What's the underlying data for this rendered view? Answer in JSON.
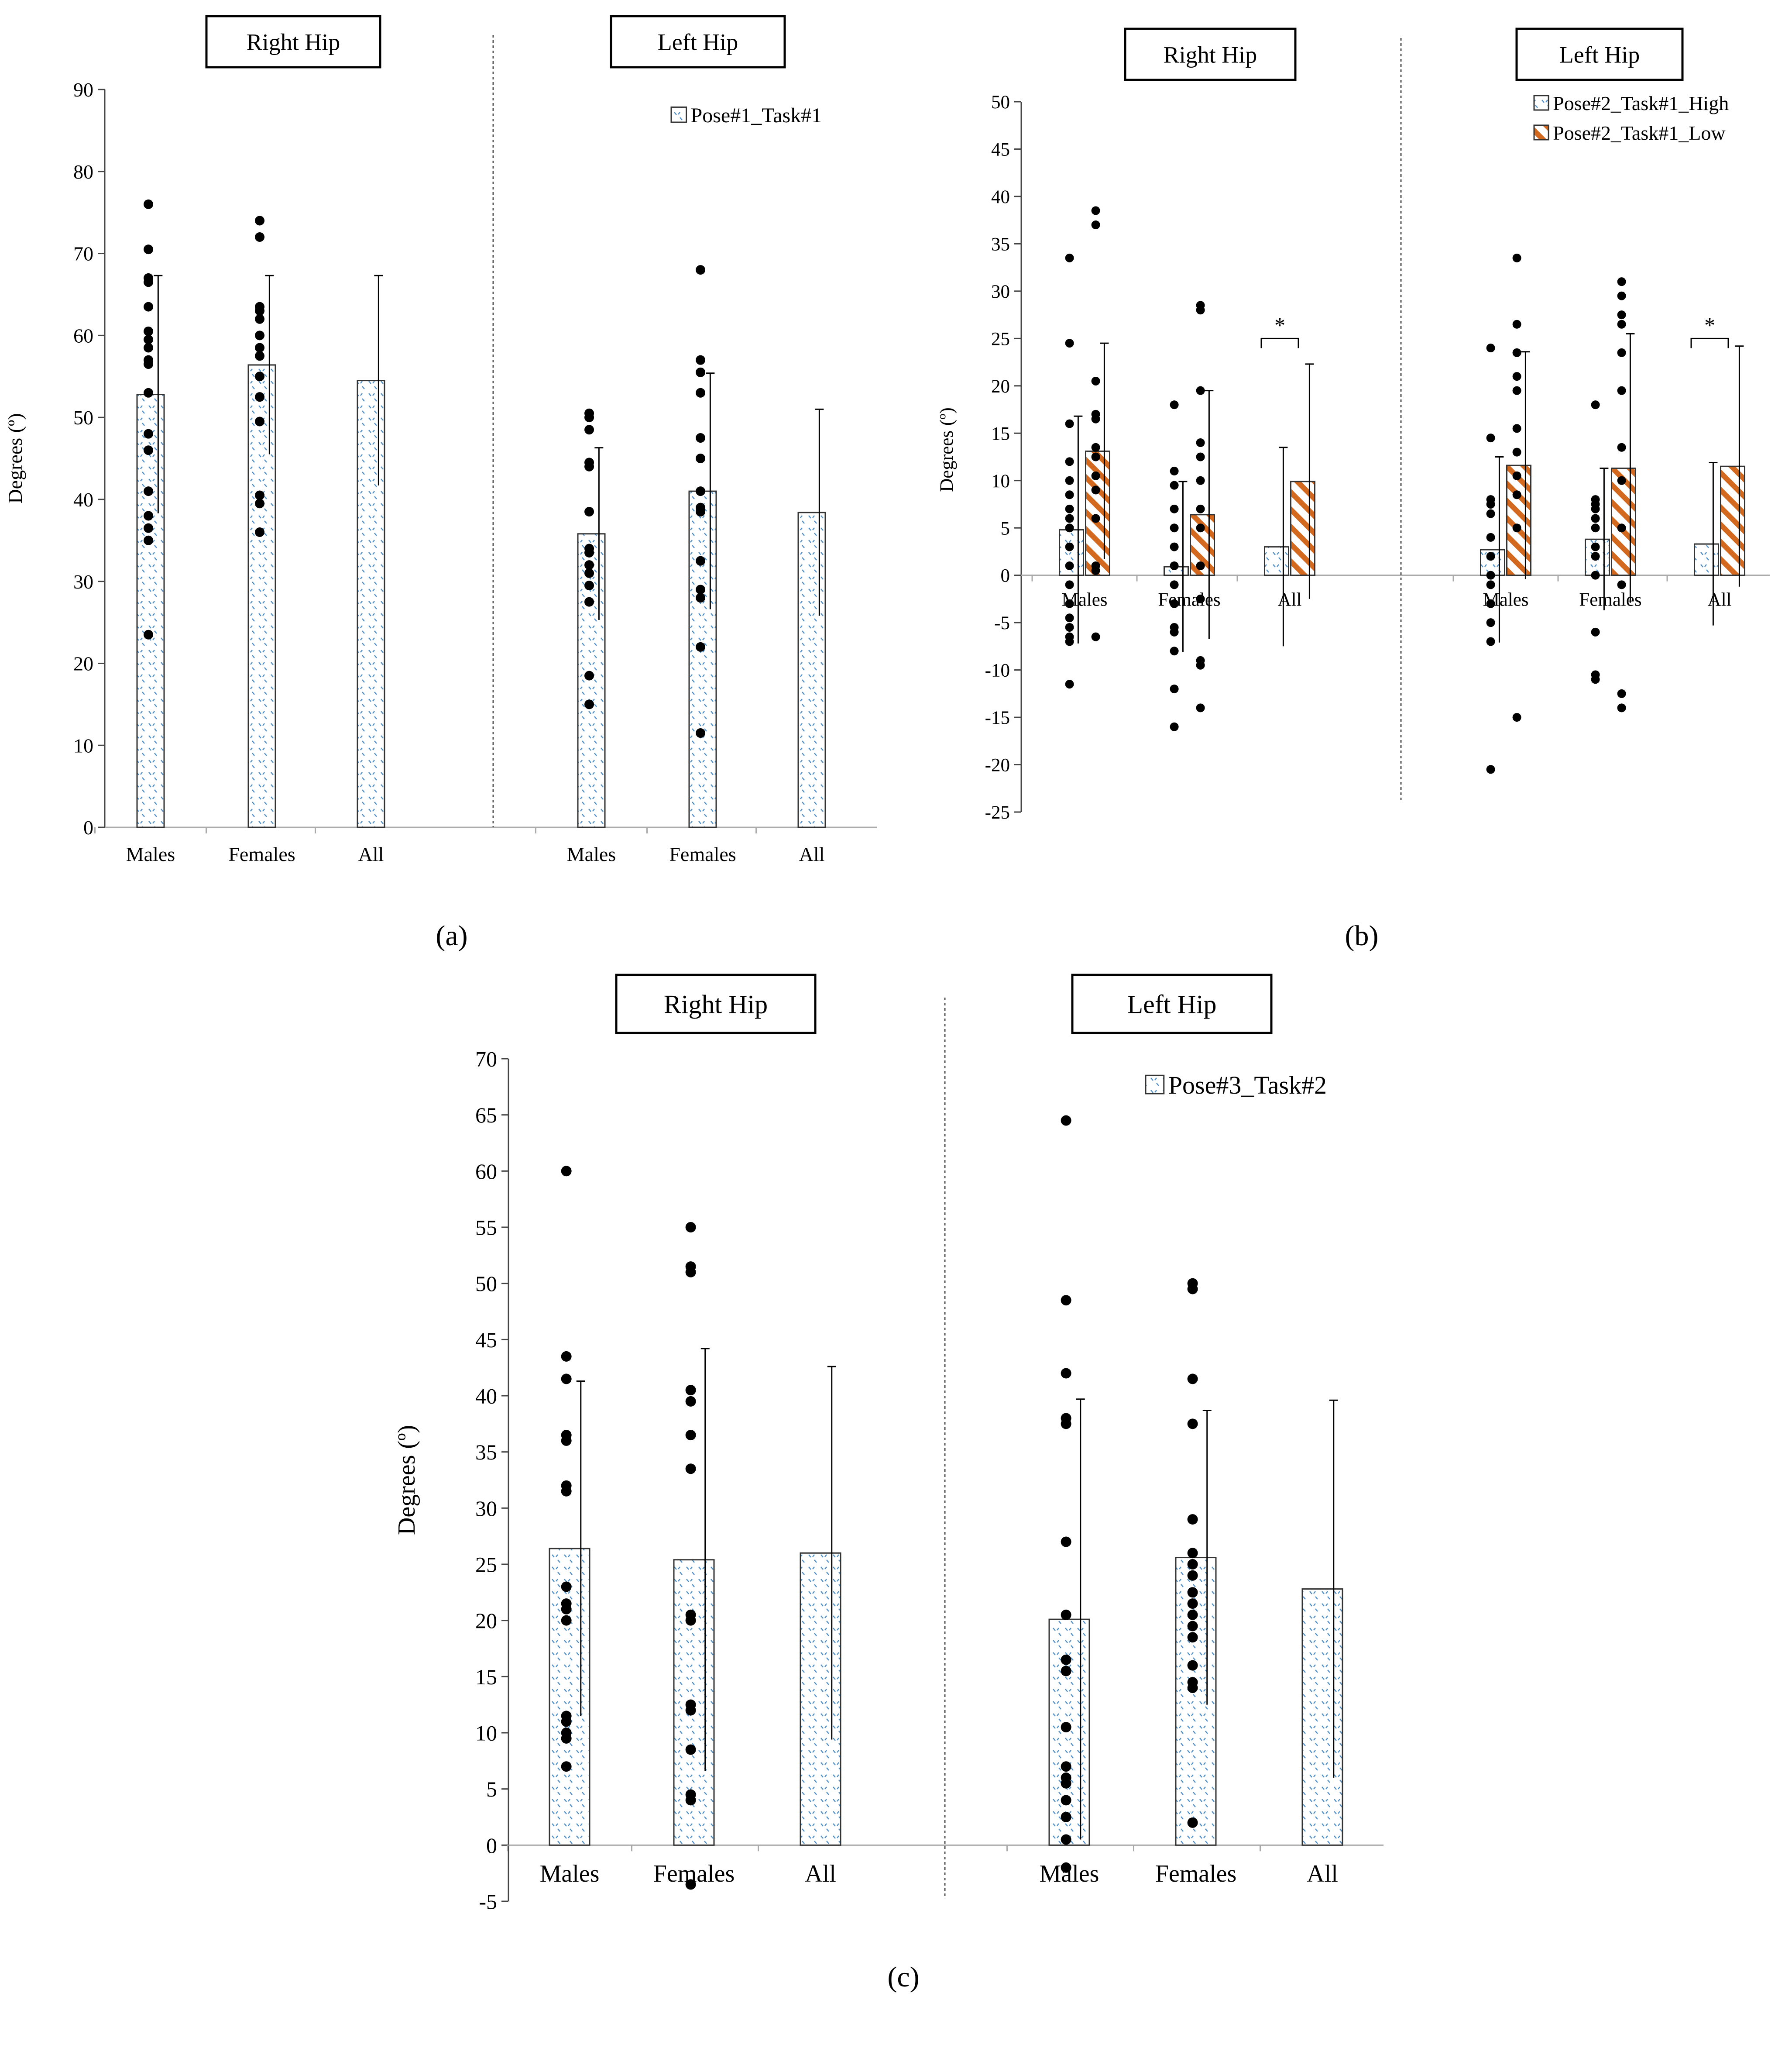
{
  "figure": {
    "panel_labels": [
      "(a)",
      "(b)",
      "(c)"
    ]
  },
  "chart_data": [
    {
      "type": "bar",
      "panel": "(a)",
      "ylabel": "Degrees (º)",
      "ylim": [
        0,
        90
      ],
      "yticks": [
        0,
        10,
        20,
        30,
        40,
        50,
        60,
        70,
        80,
        90
      ],
      "groups": [
        "Right Hip",
        "Left Hip"
      ],
      "categories": [
        "Males",
        "Females",
        "All"
      ],
      "legend_position": "top-right",
      "series": [
        {
          "name": "Pose#1_Task#1",
          "color": "#4f8fc7",
          "pattern": "dots",
          "values": [
            [
              52.8,
              56.4,
              54.5
            ],
            [
              35.8,
              41.0,
              38.4
            ]
          ],
          "errors": [
            [
              14.5,
              10.9,
              12.8
            ],
            [
              10.5,
              14.4,
              12.6
            ]
          ],
          "points": [
            [
              [
                76.0,
                70.5,
                67.0,
                66.5,
                63.5,
                60.5,
                59.5,
                58.5,
                57.0,
                56.5,
                53.0,
                48.0,
                46.0,
                41.0,
                38.0,
                36.5,
                35.0,
                23.5
              ],
              [
                74.0,
                72.0,
                63.5,
                63.0,
                62.0,
                60.0,
                58.5,
                57.5,
                55.0,
                52.5,
                49.5,
                40.5,
                39.5,
                36.0
              ]
            ],
            [
              [
                50.5,
                50.0,
                48.5,
                44.5,
                44.0,
                38.5,
                34.0,
                33.5,
                32.0,
                31.0,
                29.5,
                27.5,
                18.5,
                15.0
              ],
              [
                68.0,
                57.0,
                55.5,
                53.0,
                47.5,
                45.0,
                41.0,
                39.0,
                38.5,
                32.5,
                29.0,
                28.0,
                22.0,
                11.5
              ]
            ]
          ]
        }
      ]
    },
    {
      "type": "bar",
      "panel": "(b)",
      "ylabel": "Degrees (º)",
      "ylim": [
        -25,
        50
      ],
      "yticks": [
        -25,
        -20,
        -15,
        -10,
        -5,
        0,
        5,
        10,
        15,
        20,
        25,
        30,
        35,
        40,
        45,
        50
      ],
      "groups": [
        "Right Hip",
        "Left Hip"
      ],
      "categories": [
        "Males",
        "Females",
        "All"
      ],
      "legend_position": "top-right",
      "significance_marker": "*",
      "significance_on": [
        "Right Hip/All",
        "Left Hip/All"
      ],
      "series": [
        {
          "name": "Pose#2_Task#1_High",
          "color": "#4f8fc7",
          "pattern": "dots",
          "values": [
            [
              4.8,
              0.9,
              3.0
            ],
            [
              2.7,
              3.8,
              3.3
            ]
          ],
          "errors": [
            [
              12.0,
              9.0,
              10.5
            ],
            [
              9.8,
              7.5,
              8.6
            ]
          ],
          "points": [
            [
              [
                33.5,
                24.5,
                16.0,
                12.0,
                10.0,
                8.5,
                7.0,
                6.0,
                5.0,
                3.0,
                1.0,
                -1.0,
                -3.0,
                -4.5,
                -5.5,
                -6.5,
                -7.0,
                -11.5
              ],
              [
                18.0,
                11.0,
                9.5,
                7.0,
                5.0,
                3.0,
                1.0,
                -1.0,
                -3.0,
                -5.5,
                -6.0,
                -8.0,
                -12.0,
                -16.0
              ]
            ],
            [
              [
                24.0,
                14.5,
                8.0,
                7.5,
                6.5,
                4.0,
                2.0,
                0.0,
                -1.0,
                -3.0,
                -5.0,
                -7.0,
                -20.5
              ],
              [
                18.0,
                8.0,
                7.5,
                7.0,
                6.0,
                5.0,
                3.0,
                2.0,
                0.0,
                -6.0,
                -10.5,
                -11.0
              ]
            ]
          ]
        },
        {
          "name": "Pose#2_Task#1_Low",
          "color": "#d2691e",
          "pattern": "stripes",
          "values": [
            [
              13.1,
              6.4,
              9.9
            ],
            [
              11.6,
              11.3,
              11.5
            ]
          ],
          "errors": [
            [
              11.4,
              13.1,
              12.4
            ],
            [
              12.0,
              14.2,
              12.7
            ]
          ],
          "points": [
            [
              [
                38.5,
                37.0,
                20.5,
                17.0,
                16.5,
                13.5,
                12.5,
                10.5,
                9.0,
                6.0,
                1.0,
                0.5,
                -6.5
              ],
              [
                28.5,
                28.0,
                19.5,
                14.0,
                12.5,
                10.0,
                7.0,
                5.0,
                1.0,
                -2.5,
                -9.0,
                -9.5,
                -14.0
              ]
            ],
            [
              [
                33.5,
                26.5,
                23.5,
                21.0,
                19.5,
                15.5,
                13.0,
                10.5,
                8.5,
                5.0,
                -15.0
              ],
              [
                31.0,
                29.5,
                27.5,
                26.5,
                23.5,
                19.5,
                13.5,
                10.0,
                5.0,
                -1.0,
                -12.5,
                -14.0
              ]
            ]
          ]
        }
      ]
    },
    {
      "type": "bar",
      "panel": "(c)",
      "ylabel": "Degrees (º)",
      "ylim": [
        -5,
        70
      ],
      "yticks": [
        -5,
        0,
        5,
        10,
        15,
        20,
        25,
        30,
        35,
        40,
        45,
        50,
        55,
        60,
        65,
        70
      ],
      "groups": [
        "Right Hip",
        "Left Hip"
      ],
      "categories": [
        "Males",
        "Females",
        "All"
      ],
      "legend_position": "top-right",
      "series": [
        {
          "name": "Pose#3_Task#2",
          "color": "#4f8fc7",
          "pattern": "dots",
          "values": [
            [
              26.4,
              25.4,
              26.0
            ],
            [
              20.1,
              25.6,
              22.8
            ]
          ],
          "errors": [
            [
              14.9,
              18.8,
              16.6
            ],
            [
              19.6,
              13.1,
              16.8
            ]
          ],
          "points": [
            [
              [
                60.0,
                43.5,
                41.5,
                36.5,
                36.0,
                32.0,
                31.5,
                23.0,
                21.5,
                21.0,
                20.0,
                11.5,
                11.0,
                10.0,
                9.5,
                7.0
              ],
              [
                55.0,
                51.5,
                51.0,
                40.5,
                39.5,
                36.5,
                33.5,
                20.5,
                20.0,
                12.5,
                12.0,
                8.5,
                4.5,
                4.0,
                -3.5
              ]
            ],
            [
              [
                64.5,
                48.5,
                42.0,
                38.0,
                37.5,
                27.0,
                20.5,
                16.5,
                15.5,
                10.5,
                7.0,
                6.0,
                5.5,
                4.0,
                2.5,
                0.5,
                -2.0
              ],
              [
                50.0,
                49.5,
                41.5,
                37.5,
                29.0,
                26.0,
                25.0,
                24.0,
                22.5,
                21.5,
                20.5,
                19.5,
                18.5,
                16.0,
                14.5,
                14.0,
                2.0
              ]
            ]
          ]
        }
      ]
    }
  ]
}
